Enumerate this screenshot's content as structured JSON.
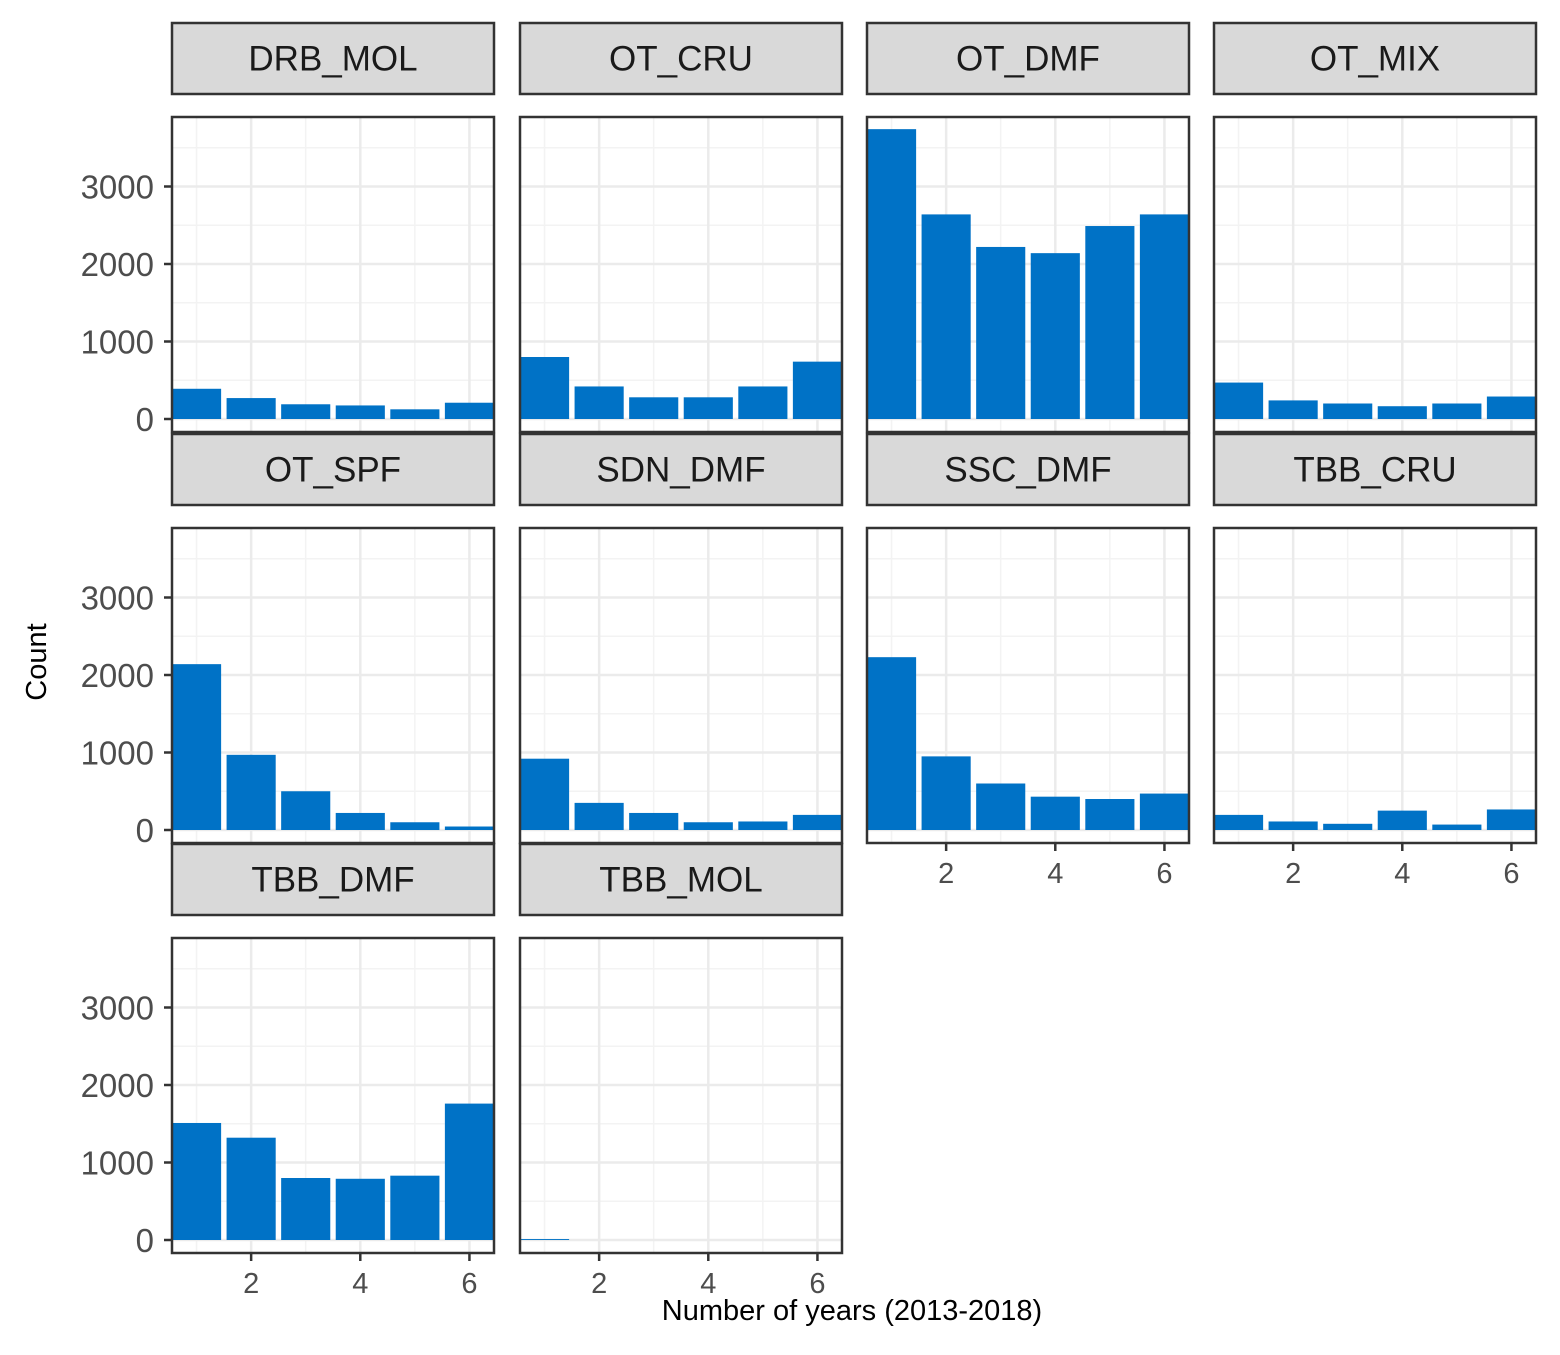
{
  "chart_data": {
    "type": "bar",
    "facet_layout": "wrap",
    "xlabel": "Number of years (2013-2018)",
    "ylabel": "Count",
    "x_categories": [
      1,
      2,
      3,
      4,
      5,
      6
    ],
    "x_ticks": [
      2,
      4,
      6
    ],
    "y_ticks": [
      0,
      1000,
      2000,
      3000
    ],
    "ylim": [
      0,
      3900
    ],
    "grid": true,
    "bar_color": "#0072C6",
    "strip_color": "#D9D9D9",
    "panels": [
      {
        "title": "DRB_MOL",
        "values": [
          390,
          270,
          190,
          175,
          125,
          210
        ]
      },
      {
        "title": "OT_CRU",
        "values": [
          800,
          420,
          280,
          280,
          420,
          740
        ]
      },
      {
        "title": "OT_DMF",
        "values": [
          3740,
          2640,
          2220,
          2140,
          2490,
          2640
        ]
      },
      {
        "title": "OT_MIX",
        "values": [
          470,
          240,
          200,
          165,
          200,
          290
        ]
      },
      {
        "title": "OT_SPF",
        "values": [
          2140,
          970,
          500,
          220,
          100,
          45
        ]
      },
      {
        "title": "SDN_DMF",
        "values": [
          920,
          350,
          220,
          100,
          110,
          195
        ]
      },
      {
        "title": "SSC_DMF",
        "values": [
          2230,
          950,
          600,
          430,
          400,
          470
        ]
      },
      {
        "title": "TBB_CRU",
        "values": [
          195,
          110,
          80,
          250,
          70,
          265
        ]
      },
      {
        "title": "TBB_DMF",
        "values": [
          1510,
          1320,
          800,
          790,
          830,
          1760
        ]
      },
      {
        "title": "TBB_MOL",
        "values": [
          12,
          0,
          0,
          0,
          0,
          0
        ]
      }
    ]
  }
}
